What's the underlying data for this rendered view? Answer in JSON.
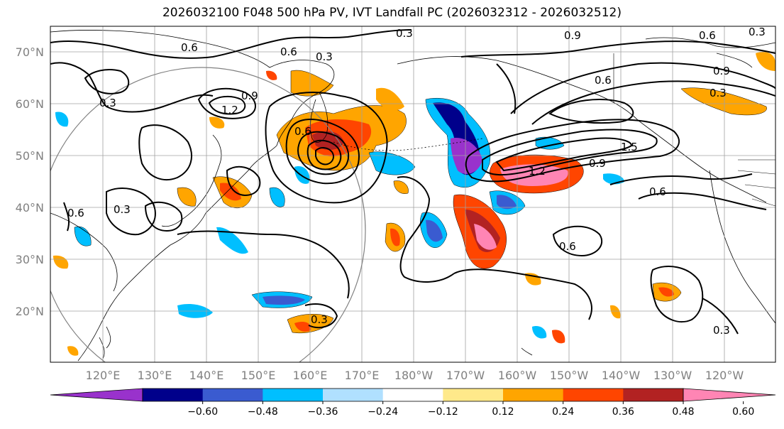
{
  "title": "2026032100 F048 500 hPa PV, IVT Landfall PC (2026032312 - 2026032512)",
  "map": {
    "lat_ticks": [
      "70°N",
      "60°N",
      "50°N",
      "40°N",
      "30°N",
      "20°N"
    ],
    "lon_ticks": [
      "120°E",
      "130°E",
      "140°E",
      "150°E",
      "160°E",
      "170°E",
      "180°W",
      "170°W",
      "160°W",
      "150°W",
      "140°W",
      "130°W",
      "120°W"
    ],
    "contour_labels": [
      "0.3",
      "0.9",
      "0.6",
      "0.3",
      "0.6",
      "0.3",
      "0.9",
      "0.6",
      "0.3",
      "0.9",
      "0.6",
      "1.2",
      "0.6",
      "0.3",
      "1.5",
      "0.9",
      "1.2",
      "0.6",
      "0.6",
      "0.3",
      "0.3",
      "0.6",
      "0.3"
    ],
    "colors": {
      "contour": "#000000",
      "grid": "#a0a0a0",
      "coast": "#000000"
    }
  },
  "colorbar": {
    "ticks": [
      "−0.60",
      "−0.48",
      "−0.36",
      "−0.24",
      "−0.12",
      "0.12",
      "0.24",
      "0.36",
      "0.48",
      "0.60"
    ],
    "colors": [
      "#9932cc",
      "#00008b",
      "#3a5bd0",
      "#00bfff",
      "#b0e0ff",
      "#ffffff",
      "#ffe98a",
      "#ffa500",
      "#ff4500",
      "#b22222",
      "#ff85b4"
    ]
  }
}
